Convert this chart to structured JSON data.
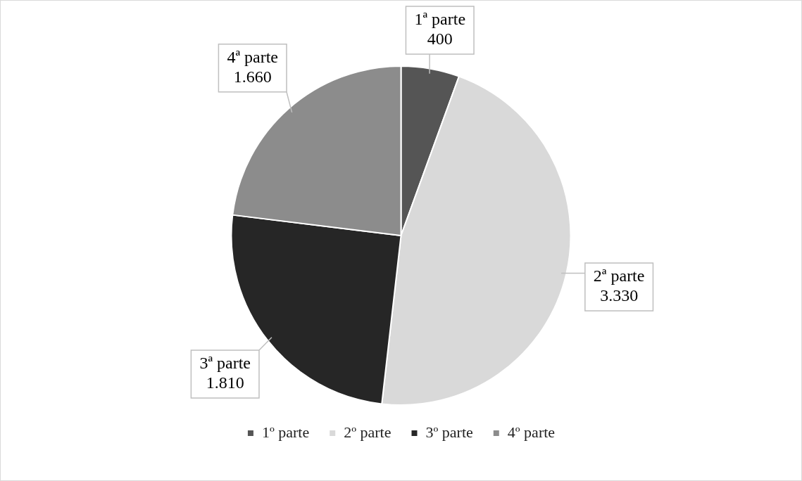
{
  "chart_data": {
    "type": "pie",
    "categories": [
      "1º parte",
      "2º parte",
      "3º parte",
      "4º parte"
    ],
    "values": [
      400,
      3330,
      1810,
      1660
    ],
    "colors": [
      "#555555",
      "#d9d9d9",
      "#262626",
      "#8c8c8c"
    ],
    "value_labels": [
      "1ª parte\n400",
      "2ª parte\n3.330",
      "3ª parte\n1.810",
      "4ª parte\n1.660"
    ],
    "legend": "bottom"
  }
}
